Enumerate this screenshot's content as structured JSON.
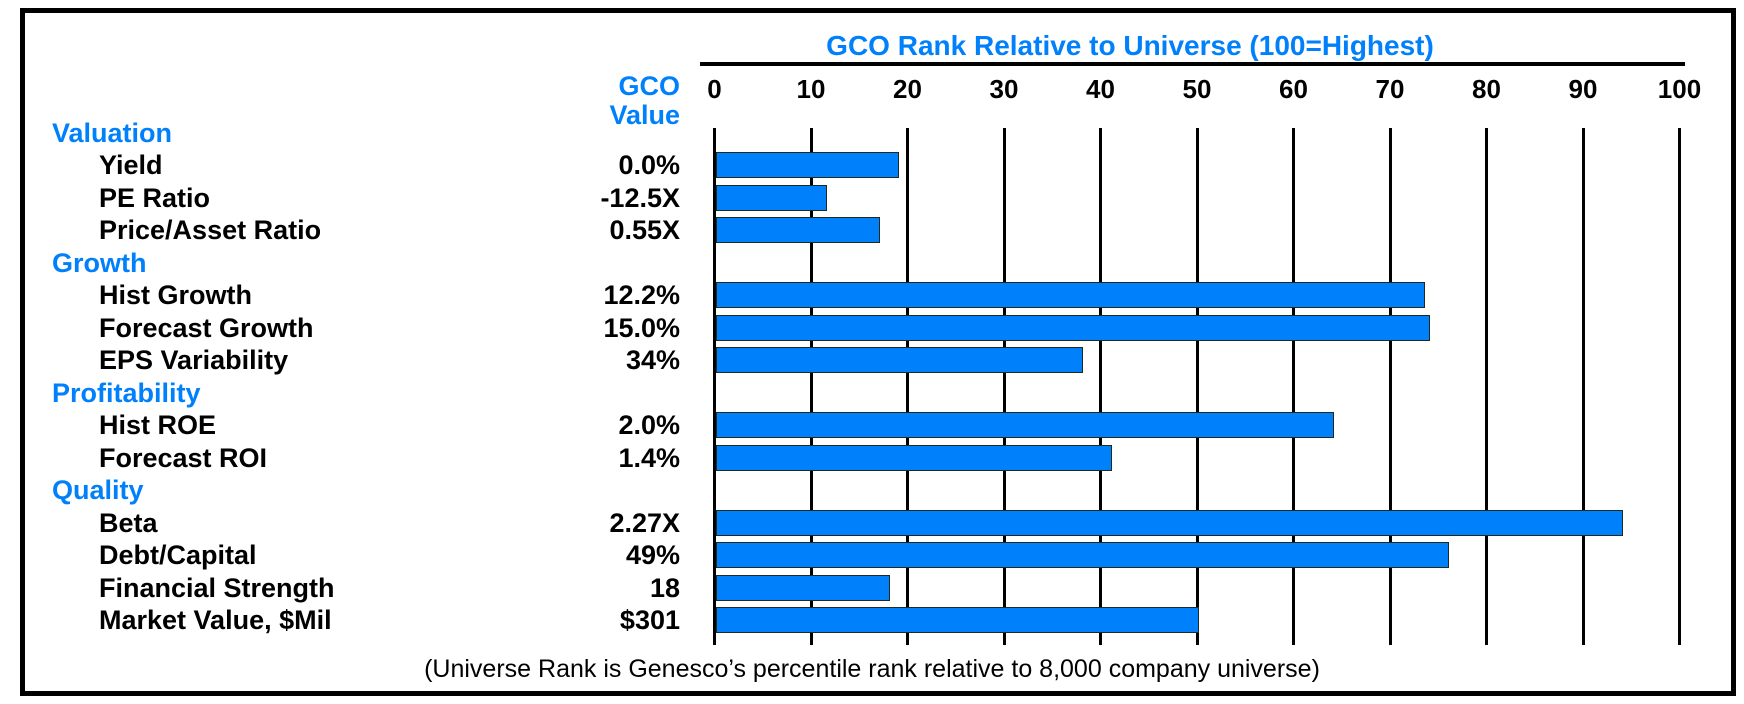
{
  "colors": {
    "accent_blue": "#0080FB",
    "bar_fill": "#0080FB",
    "bar_border": "#1c2b1c",
    "axis_black": "#000000"
  },
  "value_column_header": {
    "line1": "GCO",
    "line2": "Value"
  },
  "chart_data": {
    "type": "bar",
    "orientation": "horizontal",
    "title": "GCO Rank Relative to Universe (100=Highest)",
    "xlabel": "",
    "ylabel": "",
    "xlim": [
      0,
      100
    ],
    "grid": true,
    "axis": {
      "ticks": [
        0,
        10,
        20,
        30,
        40,
        50,
        60,
        70,
        80,
        90,
        100
      ],
      "tick_labels": [
        "0",
        "10",
        "20",
        "30",
        "40",
        "50",
        "60",
        "70",
        "80",
        "90",
        "100"
      ]
    },
    "sections": [
      {
        "label": "Valuation",
        "items": [
          {
            "label": "Yield",
            "gco_value": "0.0%",
            "rank": 19
          },
          {
            "label": "PE Ratio",
            "gco_value": "-12.5X",
            "rank": 11.5
          },
          {
            "label": "Price/Asset Ratio",
            "gco_value": "0.55X",
            "rank": 17
          }
        ]
      },
      {
        "label": "Growth",
        "items": [
          {
            "label": "Hist Growth",
            "gco_value": "12.2%",
            "rank": 73.5
          },
          {
            "label": "Forecast Growth",
            "gco_value": "15.0%",
            "rank": 74
          },
          {
            "label": "EPS Variability",
            "gco_value": "34%",
            "rank": 38
          }
        ]
      },
      {
        "label": "Profitability",
        "items": [
          {
            "label": "Hist ROE",
            "gco_value": "2.0%",
            "rank": 64
          },
          {
            "label": "Forecast ROI",
            "gco_value": "1.4%",
            "rank": 41
          }
        ]
      },
      {
        "label": "Quality",
        "items": [
          {
            "label": "Beta",
            "gco_value": "2.27X",
            "rank": 94
          },
          {
            "label": "Debt/Capital",
            "gco_value": "49%",
            "rank": 76
          },
          {
            "label": "Financial Strength",
            "gco_value": "18",
            "rank": 18
          },
          {
            "label": "Market Value, $Mil",
            "gco_value": "$301",
            "rank": 50
          }
        ]
      }
    ],
    "categories": [
      "Yield",
      "PE Ratio",
      "Price/Asset Ratio",
      "Hist Growth",
      "Forecast Growth",
      "EPS Variability",
      "Hist ROE",
      "Forecast ROI",
      "Beta",
      "Debt/Capital",
      "Financial Strength",
      "Market Value, $Mil"
    ],
    "values": [
      19,
      11.5,
      17,
      73.5,
      74,
      38,
      64,
      41,
      94,
      76,
      18,
      50
    ],
    "footnote": "(Universe Rank is Genesco’s percentile rank relative to 8,000 company universe)"
  }
}
